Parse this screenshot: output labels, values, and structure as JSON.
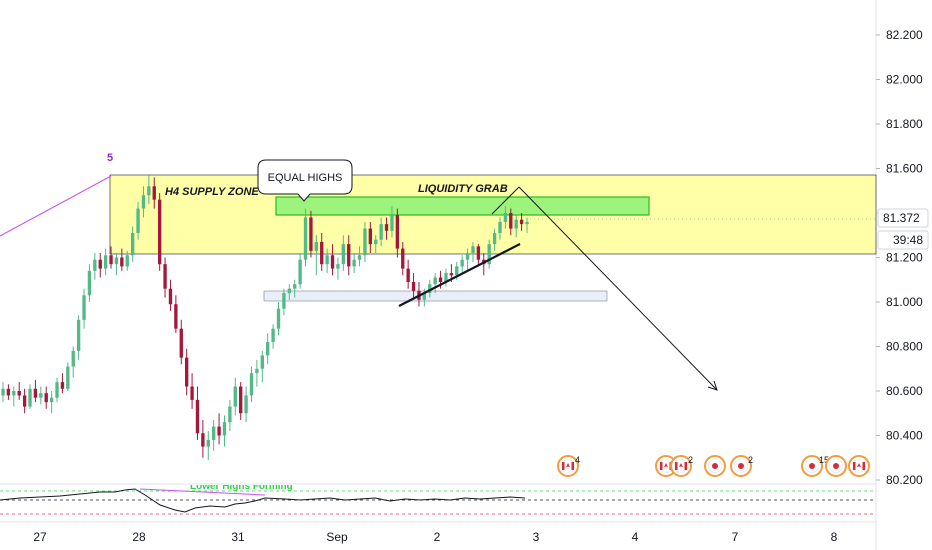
{
  "chart_data": {
    "type": "candlestick",
    "instrument_note": "",
    "y_axis": {
      "ticks": [
        "82.200",
        "82.000",
        "81.800",
        "81.600",
        "81.400",
        "81.200",
        "81.000",
        "80.800",
        "80.600",
        "80.400",
        "80.200"
      ],
      "ylim": [
        80.18,
        82.4
      ],
      "current_price": "81.372",
      "countdown": "39:48"
    },
    "x_axis": {
      "ticks": [
        "27",
        "28",
        "31",
        "Sep",
        "2",
        "3",
        "4",
        "7",
        "8"
      ]
    },
    "annotations": {
      "wave_label": "5",
      "supply_zone_label": "H4 SUPPLY ZONE",
      "equal_highs_label": "EQUAL HIGHS",
      "liquidity_label": "LIQUIDITY GRAB",
      "indicator_text": "Lower Highs Forming"
    },
    "events": [
      {
        "count": "4",
        "flag": "ca"
      },
      {
        "count": "6",
        "flag": "ca"
      },
      {
        "count": "2",
        "flag": "ca"
      },
      {
        "count": "",
        "flag": "jp"
      },
      {
        "count": "2",
        "flag": "jp"
      },
      {
        "count": "15",
        "flag": "jp"
      },
      {
        "count": "",
        "flag": "jp"
      },
      {
        "count": "",
        "flag": "ca"
      }
    ],
    "colors": {
      "up": "#53b987",
      "down": "#a3183b",
      "supply_zone": "#ffff8a",
      "liquidity_zone": "#7cf06e",
      "demand_zone": "#e9eef9",
      "purple": "#c552ff"
    },
    "candles": [
      [
        80.58,
        80.64,
        80.55,
        80.61
      ],
      [
        80.61,
        80.63,
        80.56,
        80.58
      ],
      [
        80.58,
        80.62,
        80.53,
        80.6
      ],
      [
        80.6,
        80.64,
        80.56,
        80.58
      ],
      [
        80.58,
        80.61,
        80.5,
        80.53
      ],
      [
        80.53,
        80.63,
        80.52,
        80.61
      ],
      [
        80.61,
        80.65,
        80.55,
        80.57
      ],
      [
        80.57,
        80.62,
        80.54,
        80.59
      ],
      [
        80.59,
        80.62,
        80.52,
        80.55
      ],
      [
        80.55,
        80.6,
        80.5,
        80.57
      ],
      [
        80.57,
        80.66,
        80.55,
        80.64
      ],
      [
        80.64,
        80.68,
        80.59,
        80.61
      ],
      [
        80.61,
        80.73,
        80.6,
        80.71
      ],
      [
        80.71,
        80.8,
        80.66,
        80.78
      ],
      [
        80.78,
        80.94,
        80.74,
        80.92
      ],
      [
        80.92,
        81.06,
        80.88,
        81.03
      ],
      [
        81.03,
        81.17,
        81.0,
        81.14
      ],
      [
        81.14,
        81.22,
        81.1,
        81.19
      ],
      [
        81.19,
        81.22,
        81.11,
        81.15
      ],
      [
        81.15,
        81.24,
        81.12,
        81.21
      ],
      [
        81.21,
        81.25,
        81.15,
        81.17
      ],
      [
        81.17,
        81.22,
        81.12,
        81.2
      ],
      [
        81.2,
        81.24,
        81.14,
        81.16
      ],
      [
        81.16,
        81.23,
        81.14,
        81.21
      ],
      [
        81.21,
        81.34,
        81.18,
        81.31
      ],
      [
        81.31,
        81.45,
        81.28,
        81.42
      ],
      [
        81.42,
        81.52,
        81.38,
        81.48
      ],
      [
        81.48,
        81.57,
        81.44,
        81.52
      ],
      [
        81.52,
        81.56,
        81.42,
        81.46
      ],
      [
        81.46,
        81.49,
        81.14,
        81.17
      ],
      [
        81.17,
        81.2,
        81.02,
        81.06
      ],
      [
        81.06,
        81.1,
        80.96,
        80.99
      ],
      [
        80.99,
        81.03,
        80.86,
        80.88
      ],
      [
        80.88,
        80.92,
        80.72,
        80.75
      ],
      [
        80.75,
        80.79,
        80.58,
        80.62
      ],
      [
        80.62,
        80.68,
        80.52,
        80.56
      ],
      [
        80.56,
        80.62,
        80.38,
        80.41
      ],
      [
        80.41,
        80.47,
        80.3,
        80.35
      ],
      [
        80.35,
        80.42,
        80.29,
        80.38
      ],
      [
        80.38,
        80.47,
        80.33,
        80.44
      ],
      [
        80.44,
        80.5,
        80.36,
        80.4
      ],
      [
        80.4,
        80.49,
        80.35,
        80.46
      ],
      [
        80.46,
        80.56,
        80.42,
        80.53
      ],
      [
        80.53,
        80.66,
        80.49,
        80.62
      ],
      [
        80.62,
        80.64,
        80.47,
        80.5
      ],
      [
        80.5,
        80.62,
        80.46,
        80.58
      ],
      [
        80.58,
        80.71,
        80.55,
        80.68
      ],
      [
        80.68,
        80.74,
        80.62,
        80.7
      ],
      [
        80.7,
        80.78,
        80.64,
        80.76
      ],
      [
        80.76,
        80.86,
        80.72,
        80.82
      ],
      [
        80.82,
        80.9,
        80.79,
        80.88
      ],
      [
        80.88,
        81.0,
        80.85,
        80.97
      ],
      [
        80.97,
        81.06,
        80.94,
        81.04
      ],
      [
        81.04,
        81.08,
        81.01,
        81.06
      ],
      [
        81.06,
        81.1,
        81.02,
        81.08
      ],
      [
        81.08,
        81.22,
        81.06,
        81.19
      ],
      [
        81.19,
        81.42,
        81.16,
        81.38
      ],
      [
        81.38,
        81.41,
        81.2,
        81.23
      ],
      [
        81.23,
        81.3,
        81.12,
        81.27
      ],
      [
        81.27,
        81.31,
        81.14,
        81.17
      ],
      [
        81.17,
        81.24,
        81.13,
        81.21
      ],
      [
        81.21,
        81.26,
        81.12,
        81.15
      ],
      [
        81.15,
        81.2,
        81.1,
        81.17
      ],
      [
        81.17,
        81.3,
        81.14,
        81.26
      ],
      [
        81.26,
        81.3,
        81.12,
        81.16
      ],
      [
        81.16,
        81.22,
        81.13,
        81.19
      ],
      [
        81.19,
        81.25,
        81.16,
        81.21
      ],
      [
        81.21,
        81.36,
        81.18,
        81.33
      ],
      [
        81.33,
        81.36,
        81.22,
        81.26
      ],
      [
        81.26,
        81.3,
        81.22,
        81.28
      ],
      [
        81.28,
        81.38,
        81.25,
        81.35
      ],
      [
        81.35,
        81.38,
        81.28,
        81.32
      ],
      [
        81.32,
        81.43,
        81.29,
        81.39
      ],
      [
        81.39,
        81.42,
        81.2,
        81.24
      ],
      [
        81.24,
        81.27,
        81.12,
        81.15
      ],
      [
        81.15,
        81.19,
        81.06,
        81.09
      ],
      [
        81.09,
        81.13,
        81.02,
        81.05
      ],
      [
        81.05,
        81.09,
        80.98,
        81.01
      ],
      [
        81.01,
        81.06,
        80.98,
        81.04
      ],
      [
        81.04,
        81.1,
        81.02,
        81.08
      ],
      [
        81.08,
        81.13,
        81.04,
        81.11
      ],
      [
        81.11,
        81.14,
        81.06,
        81.09
      ],
      [
        81.09,
        81.15,
        81.07,
        81.13
      ],
      [
        81.13,
        81.17,
        81.09,
        81.12
      ],
      [
        81.12,
        81.18,
        81.1,
        81.16
      ],
      [
        81.16,
        81.21,
        81.13,
        81.19
      ],
      [
        81.19,
        81.24,
        81.14,
        81.22
      ],
      [
        81.22,
        81.27,
        81.18,
        81.25
      ],
      [
        81.25,
        81.26,
        81.16,
        81.19
      ],
      [
        81.19,
        81.22,
        81.12,
        81.17
      ],
      [
        81.17,
        81.28,
        81.15,
        81.26
      ],
      [
        81.26,
        81.33,
        81.23,
        81.31
      ],
      [
        81.31,
        81.38,
        81.28,
        81.36
      ],
      [
        81.36,
        81.43,
        81.33,
        81.4
      ],
      [
        81.4,
        81.42,
        81.3,
        81.33
      ],
      [
        81.33,
        81.39,
        81.29,
        81.37
      ],
      [
        81.37,
        81.4,
        81.32,
        81.35
      ],
      [
        81.35,
        81.38,
        81.31,
        81.36
      ]
    ]
  }
}
